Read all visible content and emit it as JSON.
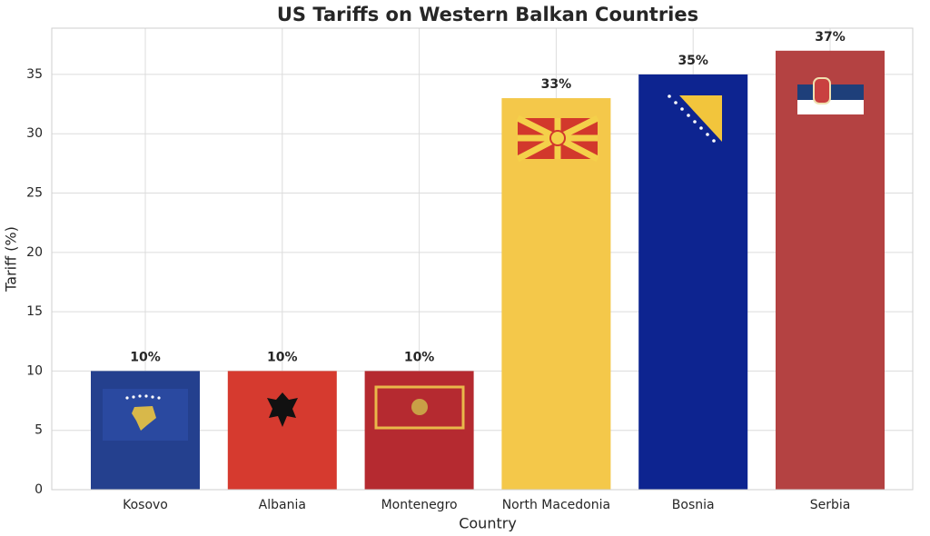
{
  "chart_data": {
    "type": "bar",
    "title": "US Tariffs on Western Balkan Countries",
    "x_label": "Country",
    "y_label": "Tariff (%)",
    "categories": [
      "Kosovo",
      "Albania",
      "Montenegro",
      "North Macedonia",
      "Bosnia",
      "Serbia"
    ],
    "values": [
      10,
      10,
      10,
      33,
      35,
      37
    ],
    "value_labels": [
      "10%",
      "10%",
      "10%",
      "33%",
      "35%",
      "37%"
    ],
    "colors": [
      "#24408e",
      "#d63a2f",
      "#b52a30",
      "#f4c84a",
      "#0d2490",
      "#b44242"
    ],
    "ylim": [
      0,
      38.9
    ],
    "yticks": [
      0,
      5,
      10,
      15,
      20,
      25,
      30,
      35
    ],
    "grid": true
  }
}
